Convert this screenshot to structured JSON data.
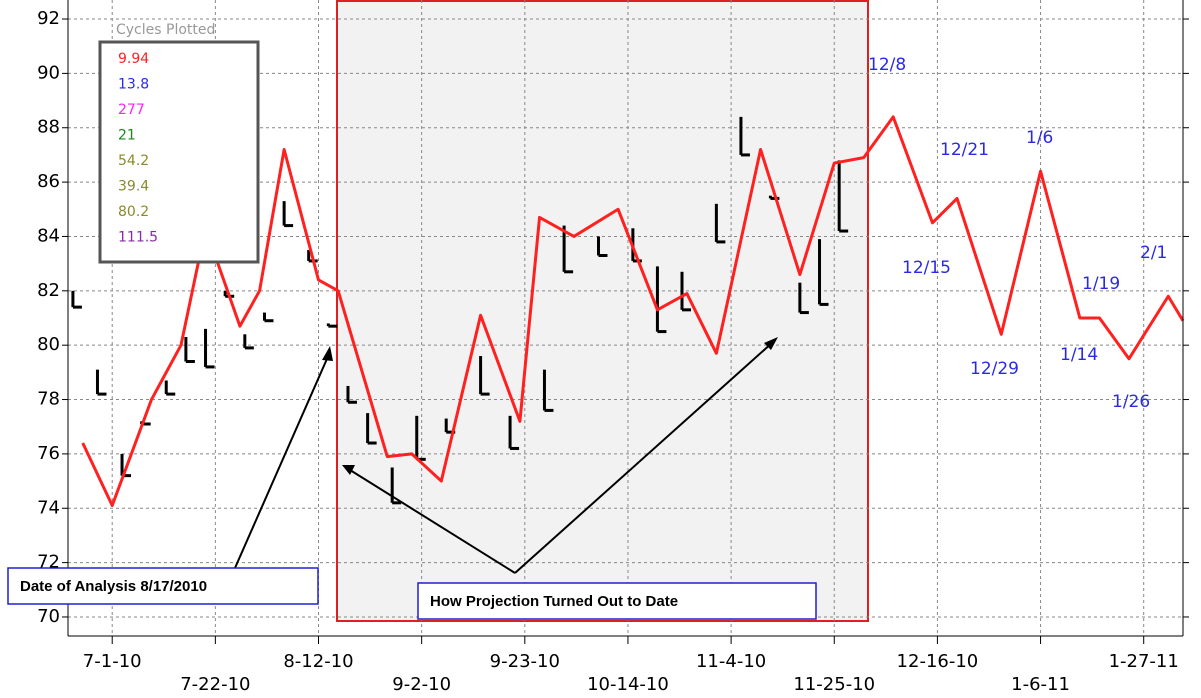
{
  "chart_data": {
    "type": "line",
    "xlim": [
      "6-22-10",
      "2-4-11"
    ],
    "xticks": [
      "7-1-10",
      "7-22-10",
      "8-12-10",
      "9-2-10",
      "9-23-10",
      "10-14-10",
      "11-4-10",
      "11-25-10",
      "12-16-10",
      "1-6-11",
      "1-27-11"
    ],
    "ylim": [
      69.3,
      92.7
    ],
    "yticks": [
      70,
      72,
      74,
      76,
      78,
      80,
      82,
      84,
      86,
      88,
      90,
      92
    ],
    "grid": true,
    "series": [
      {
        "color": "#ff2020",
        "x": [
          "6-25-10",
          "7-1-10",
          "7-9-10",
          "7-15-10",
          "7-20-10",
          "7-27-10",
          "7-31-10",
          "8-5-10",
          "8-12-10",
          "8-16-10",
          "8-26-10",
          "8-31-10",
          "9-6-10",
          "9-14-10",
          "9-22-10",
          "9-26-10",
          "10-3-10",
          "10-12-10",
          "10-20-10",
          "10-26-10",
          "11-1-10",
          "11-10-10",
          "11-18-10",
          "11-25-10",
          "12-1-10",
          "12-7-10",
          "12-15-10",
          "12-20-10",
          "12-29-10",
          "1-6-11",
          "1-14-11",
          "1-18-11",
          "1-24-11",
          "2-1-11",
          "2-4-11"
        ],
        "values": [
          76.4,
          74.1,
          78,
          80,
          84.3,
          80.7,
          82,
          87.2,
          82.4,
          82,
          75.9,
          76,
          75,
          81.1,
          77.2,
          84.7,
          84,
          85,
          81.3,
          81.9,
          79.7,
          87.2,
          82.6,
          86.7,
          86.9,
          88.4,
          84.5,
          85.4,
          80.4,
          86.4,
          81,
          81,
          79.5,
          81.8,
          80.9
        ]
      }
    ],
    "price_bars": {
      "color": "#000000",
      "x": [
        "6-23-10",
        "6-28-10",
        "7-3-10",
        "7-7-10",
        "7-12-10",
        "7-16-10",
        "7-20-10",
        "7-24-10",
        "7-28-10",
        "8-1-10",
        "8-5-10",
        "8-10-10",
        "8-14-10",
        "8-18-10",
        "8-22-10",
        "8-27-10",
        "9-1-10",
        "9-7-10",
        "9-14-10",
        "9-20-10",
        "9-27-10",
        "10-1-10",
        "10-8-10",
        "10-15-10",
        "10-20-10",
        "10-25-10",
        "11-1-10",
        "11-6-10",
        "11-12-10",
        "11-18-10",
        "11-22-10",
        "11-26-10"
      ],
      "high": [
        82,
        79.1,
        76,
        77.2,
        78.7,
        80.3,
        80.6,
        82,
        80.4,
        81.2,
        85.3,
        83.5,
        80.8,
        78.5,
        77.5,
        75.5,
        77.4,
        77.3,
        79.6,
        77.4,
        79.1,
        84.4,
        84,
        84.3,
        82.9,
        82.7,
        85.2,
        88.4,
        85.5,
        82.3,
        83.9,
        86.8
      ],
      "low": [
        81.4,
        78.2,
        75.2,
        77.1,
        78.2,
        79.4,
        79.2,
        81.8,
        79.9,
        80.9,
        84.4,
        83.1,
        80.7,
        77.9,
        76.4,
        74.2,
        75.8,
        76.8,
        78.2,
        76.2,
        77.6,
        82.7,
        83.3,
        83.1,
        80.5,
        81.3,
        83.8,
        87,
        85.4,
        81.2,
        81.5,
        84.2
      ]
    },
    "legend": {
      "title": "Cycles Plotted",
      "items": [
        {
          "label": "9.94",
          "color": "#ff2020"
        },
        {
          "label": "13.8",
          "color": "#2a2ae6"
        },
        {
          "label": "277",
          "color": "#ff20ff"
        },
        {
          "label": "21",
          "color": "#1a8a1a"
        },
        {
          "label": "54.2",
          "color": "#8a8a2a"
        },
        {
          "label": "39.4",
          "color": "#8a8a2a"
        },
        {
          "label": "80.2",
          "color": "#8a8a2a"
        },
        {
          "label": "111.5",
          "color": "#8a2aaa"
        }
      ]
    },
    "annotations": [
      "12/8",
      "12/21",
      "1/6",
      "12/15",
      "2/1",
      "1/19",
      "12/29",
      "1/14",
      "1/26"
    ],
    "callouts": [
      "Date of Analysis  8/17/2010",
      "How Projection Turned Out to Date"
    ]
  }
}
